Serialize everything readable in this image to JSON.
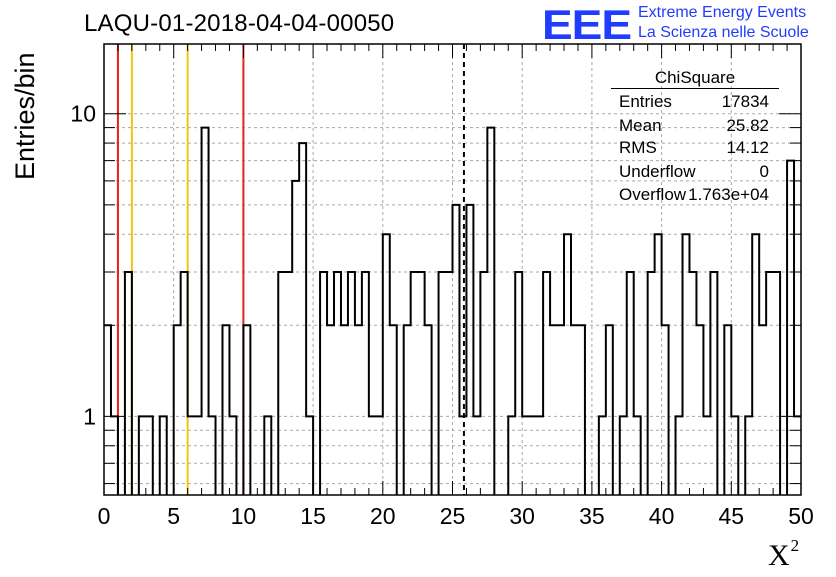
{
  "header": {
    "run_title": "LAQU-01-2018-04-04-00050",
    "logo_text": "EEE",
    "logo_line1": "Extreme Energy Events",
    "logo_line2": "La Scienza nelle Scuole"
  },
  "stats_box": {
    "title": "ChiSquare",
    "rows": [
      {
        "key": "Entries",
        "value": "17834"
      },
      {
        "key": "Mean",
        "value": "25.82"
      },
      {
        "key": "RMS",
        "value": "14.12"
      },
      {
        "key": "Underflow",
        "value": "0"
      },
      {
        "key": "Overflow",
        "value": "1.763e+04"
      }
    ]
  },
  "colors": {
    "histogram": "#000000",
    "red_lines": "#e8211a",
    "yellow_lines": "#f2c410",
    "mean_line": "#000000",
    "grid": "#a8a8a8",
    "logo": "#1f3cff"
  },
  "chart_data": {
    "type": "bar",
    "style": "step-histogram",
    "title": "LAQU-01-2018-04-04-00050",
    "xlabel": "X²",
    "ylabel": "Entries/bin",
    "xlim": [
      0,
      50
    ],
    "ylim": [
      0.55,
      17
    ],
    "yscale": "log",
    "grid": true,
    "bin_width": 0.5,
    "x_ticks": [
      "0",
      "5",
      "10",
      "15",
      "20",
      "25",
      "30",
      "35",
      "40",
      "45",
      "50"
    ],
    "y_ticks": [
      "1",
      "10"
    ],
    "values": [
      2,
      1,
      0,
      3,
      0,
      1,
      1,
      0,
      1,
      0,
      2,
      3,
      1,
      1,
      9,
      1,
      0,
      2,
      1,
      0,
      2,
      0,
      0,
      1,
      0,
      3,
      3,
      6,
      8,
      1,
      0,
      3,
      2,
      3,
      2,
      3,
      2,
      3,
      1,
      1,
      4,
      2,
      0,
      2,
      3,
      3,
      2,
      0,
      3,
      3,
      5,
      1,
      5,
      1,
      3,
      9,
      0,
      0,
      1,
      3,
      1,
      1,
      1,
      3,
      2,
      2,
      4,
      2,
      2,
      0,
      0,
      1,
      2,
      0,
      1,
      3,
      1,
      0,
      3,
      4,
      2,
      0,
      1,
      4,
      3,
      2,
      1,
      3,
      0,
      2,
      1,
      0,
      1,
      4,
      2,
      3,
      3,
      0,
      7,
      1
    ],
    "vertical_lines": [
      {
        "x": 1,
        "color": "red"
      },
      {
        "x": 10,
        "color": "red"
      },
      {
        "x": 2,
        "color": "yellow"
      },
      {
        "x": 6,
        "color": "yellow"
      },
      {
        "x": 25.82,
        "color": "black",
        "style": "dashed"
      }
    ]
  }
}
